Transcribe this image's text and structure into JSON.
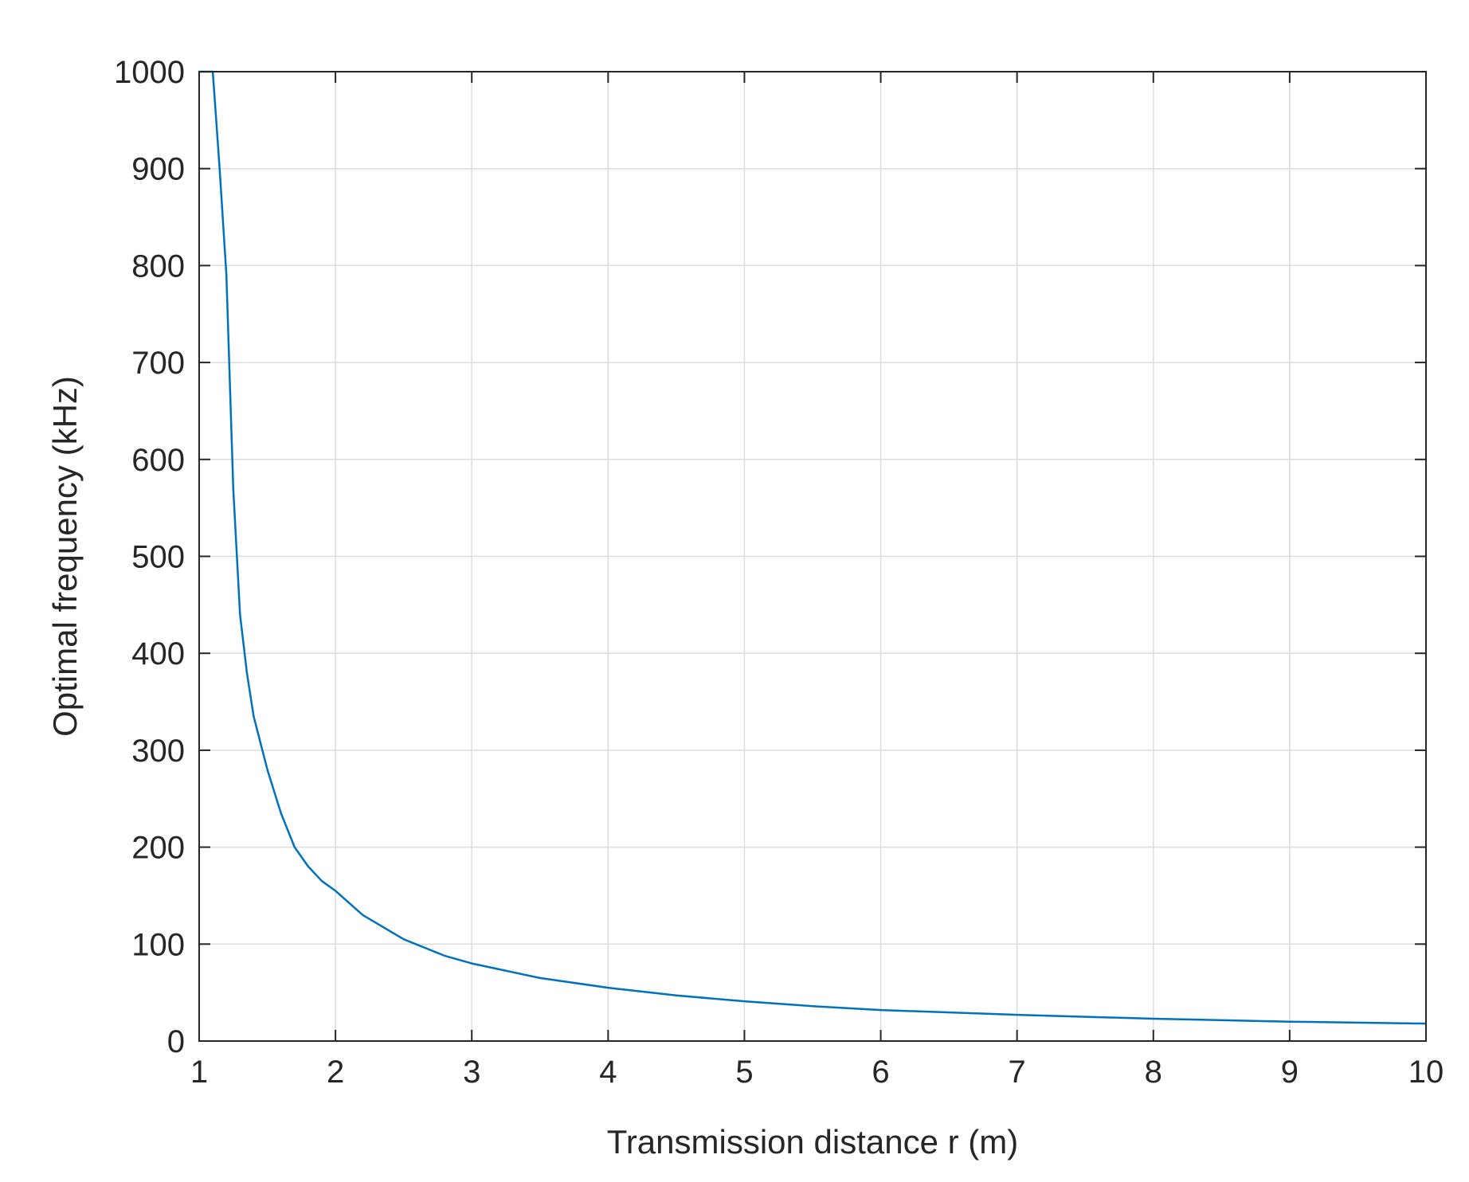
{
  "chart_data": {
    "type": "line",
    "title": "",
    "xlabel": "Transmission distance r (m)",
    "ylabel": "Optimal frequency (kHz)",
    "xlim": [
      1,
      10
    ],
    "ylim": [
      0,
      1000
    ],
    "xticks": [
      "1",
      "2",
      "3",
      "4",
      "5",
      "6",
      "7",
      "8",
      "9",
      "10"
    ],
    "yticks": [
      "0",
      "100",
      "200",
      "300",
      "400",
      "500",
      "600",
      "700",
      "800",
      "900",
      "1000"
    ],
    "grid": true,
    "legend": "none",
    "series": [
      {
        "color": "#0072BD",
        "x": [
          1.0,
          1.1,
          1.15,
          1.2,
          1.25,
          1.3,
          1.35,
          1.4,
          1.5,
          1.6,
          1.7,
          1.8,
          1.9,
          2.0,
          2.2,
          2.5,
          2.8,
          3.0,
          3.5,
          4.0,
          4.5,
          5.0,
          5.5,
          6.0,
          7.0,
          8.0,
          9.0,
          10.0
        ],
        "y": [
          1000,
          1000,
          900,
          790,
          570,
          440,
          380,
          335,
          280,
          235,
          200,
          180,
          165,
          155,
          130,
          105,
          88,
          80,
          65,
          55,
          47,
          41,
          36,
          32,
          27,
          23,
          20,
          18
        ]
      }
    ]
  }
}
